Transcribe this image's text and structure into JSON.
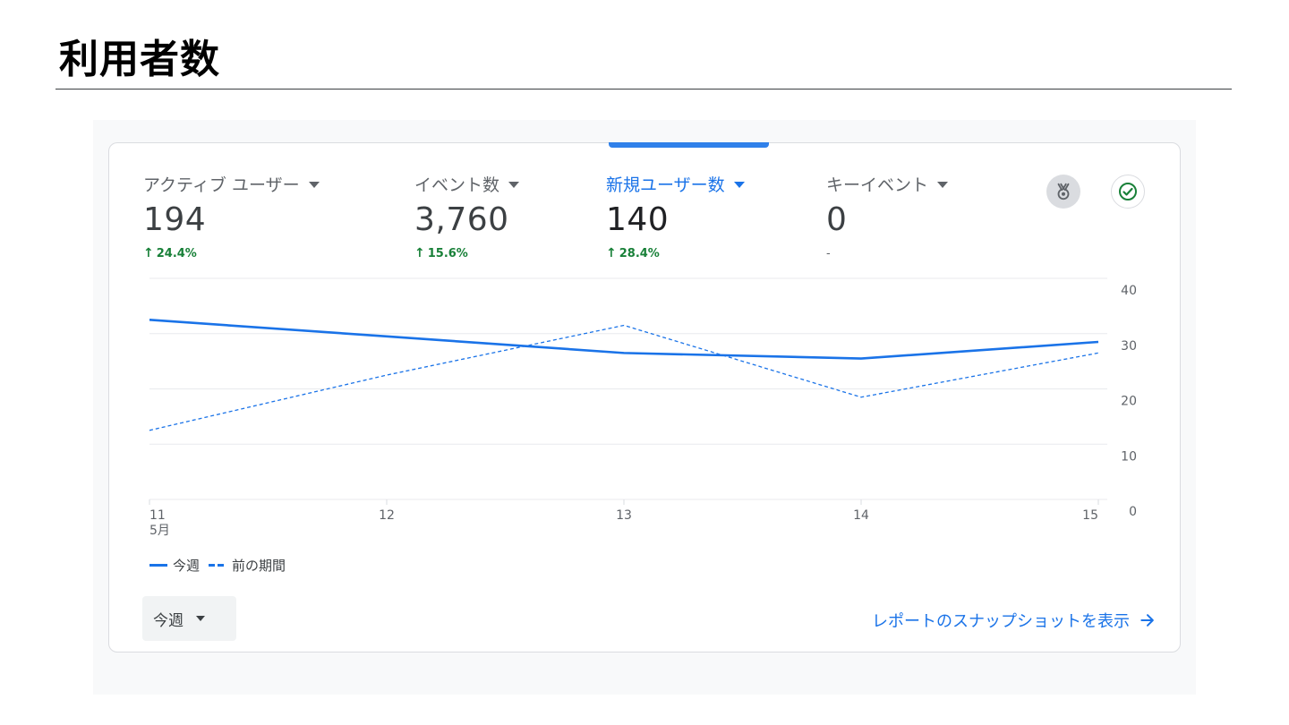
{
  "page": {
    "title": "利用者数"
  },
  "metrics": [
    {
      "label": "アクティブ ユーザー",
      "value": "194",
      "change": "24.4%",
      "direction": "up",
      "selected": false
    },
    {
      "label": "イベント数",
      "value": "3,760",
      "change": "15.6%",
      "direction": "up",
      "selected": false
    },
    {
      "label": "新規ユーザー数",
      "value": "140",
      "change": "28.4%",
      "direction": "up",
      "selected": true
    },
    {
      "label": "キーイベント",
      "value": "0",
      "change": "-",
      "direction": "none",
      "selected": false
    }
  ],
  "icons": {
    "medal": "medal-icon",
    "check": "check-circle-icon"
  },
  "colors": {
    "accent": "#1a73e8",
    "positive": "#188038",
    "text": "#5f6368"
  },
  "chart_data": {
    "type": "line",
    "x": [
      "11",
      "12",
      "13",
      "14",
      "15"
    ],
    "x_sublabel": "5月",
    "y_ticks": [
      "0",
      "10",
      "20",
      "30",
      "40"
    ],
    "ylim": [
      0,
      40
    ],
    "grid": true,
    "series": [
      {
        "name": "今週",
        "style": "solid",
        "values": [
          32.5,
          29.5,
          26.5,
          25.5,
          28.5
        ]
      },
      {
        "name": "前の期間",
        "style": "dashed",
        "values": [
          12.5,
          22.5,
          31.5,
          18.5,
          26.5
        ]
      }
    ]
  },
  "legend": {
    "current": "今週",
    "previous": "前の期間"
  },
  "footer": {
    "period_label": "今週",
    "snapshot_link": "レポートのスナップショットを表示"
  }
}
